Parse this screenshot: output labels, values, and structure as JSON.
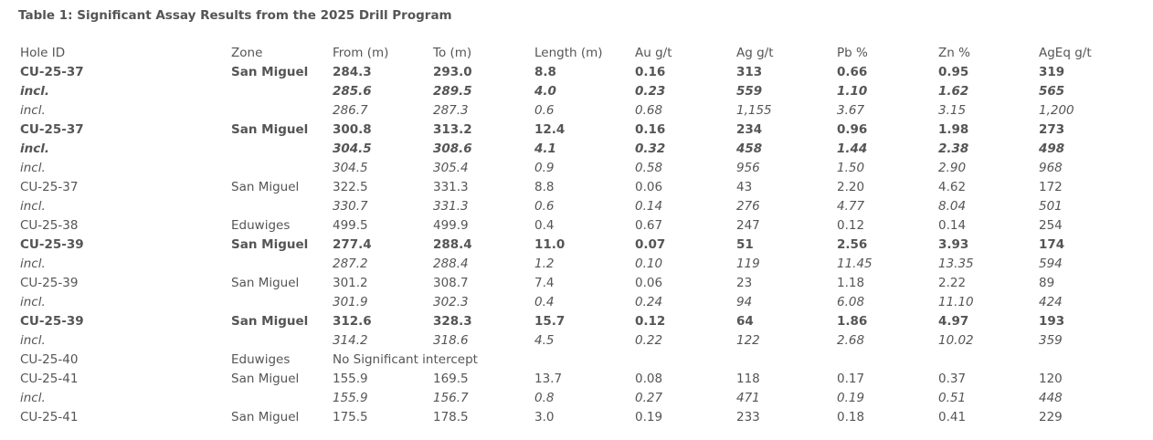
{
  "title": "Table 1: Significant Assay Results from the 2025 Drill Program",
  "table": {
    "header": [
      "Hole ID",
      "Zone",
      "From (m)",
      "To (m)",
      "Length (m)",
      "Au g/t",
      "Ag g/t",
      "Pb %",
      "Zn %",
      "AgEq g/t"
    ],
    "rows": [
      [
        "CU-25-37",
        "San Miguel",
        "284.3",
        "293.0",
        "8.8",
        "0.16",
        "313",
        "0.66",
        "0.95",
        "319"
      ],
      [
        "incl.",
        null,
        "285.6",
        "289.5",
        "4.0",
        "0.23",
        "559",
        "1.10",
        "1.62",
        "565"
      ],
      [
        "incl.",
        null,
        "286.7",
        "287.3",
        "0.6",
        "0.68",
        "1,155",
        "3.67",
        "3.15",
        "1,200"
      ],
      [
        "CU-25-37",
        "San Miguel",
        "300.8",
        "313.2",
        "12.4",
        "0.16",
        "234",
        "0.96",
        "1.98",
        "273"
      ],
      [
        "incl.",
        null,
        "304.5",
        "308.6",
        "4.1",
        "0.32",
        "458",
        "1.44",
        "2.38",
        "498"
      ],
      [
        "incl.",
        null,
        "304.5",
        "305.4",
        "0.9",
        "0.58",
        "956",
        "1.50",
        "2.90",
        "968"
      ],
      [
        "CU-25-37",
        "San Miguel",
        "322.5",
        "331.3",
        "8.8",
        "0.06",
        "43",
        "2.20",
        "4.62",
        "172"
      ],
      [
        "incl.",
        null,
        "330.7",
        "331.3",
        "0.6",
        "0.14",
        "276",
        "4.77",
        "8.04",
        "501"
      ],
      [
        "CU-25-38",
        "Eduwiges",
        "499.5",
        "499.9",
        "0.4",
        "0.67",
        "247",
        "0.12",
        "0.14",
        "254"
      ],
      [
        "CU-25-39",
        "San Miguel",
        "277.4",
        "288.4",
        "11.0",
        "0.07",
        "51",
        "2.56",
        "3.93",
        "174"
      ],
      [
        "incl.",
        null,
        "287.2",
        "288.4",
        "1.2",
        "0.10",
        "119",
        "11.45",
        "13.35",
        "594"
      ],
      [
        "CU-25-39",
        "San Miguel",
        "301.2",
        "308.7",
        "7.4",
        "0.06",
        "23",
        "1.18",
        "2.22",
        "89"
      ],
      [
        "incl.",
        null,
        "301.9",
        "302.3",
        "0.4",
        "0.24",
        "94",
        "6.08",
        "11.10",
        "424"
      ],
      [
        "CU-25-39",
        "San Miguel",
        "312.6",
        "328.3",
        "15.7",
        "0.12",
        "64",
        "1.86",
        "4.97",
        "193"
      ],
      [
        "incl.",
        null,
        "314.2",
        "318.6",
        "4.5",
        "0.22",
        "122",
        "2.68",
        "10.02",
        "359"
      ],
      [
        "CU-25-40",
        "Eduwiges",
        "No Significant intercept"
      ],
      [
        "CU-25-41",
        "San Miguel",
        "155.9",
        "169.5",
        "13.7",
        "0.08",
        "118",
        "0.17",
        "0.37",
        "120"
      ],
      [
        "incl.",
        null,
        "155.9",
        "156.7",
        "0.8",
        "0.27",
        "471",
        "0.19",
        "0.51",
        "448"
      ],
      [
        "CU-25-41",
        "San Miguel",
        "175.5",
        "178.5",
        "3.0",
        "0.19",
        "233",
        "0.18",
        "0.41",
        "229"
      ]
    ]
  }
}
